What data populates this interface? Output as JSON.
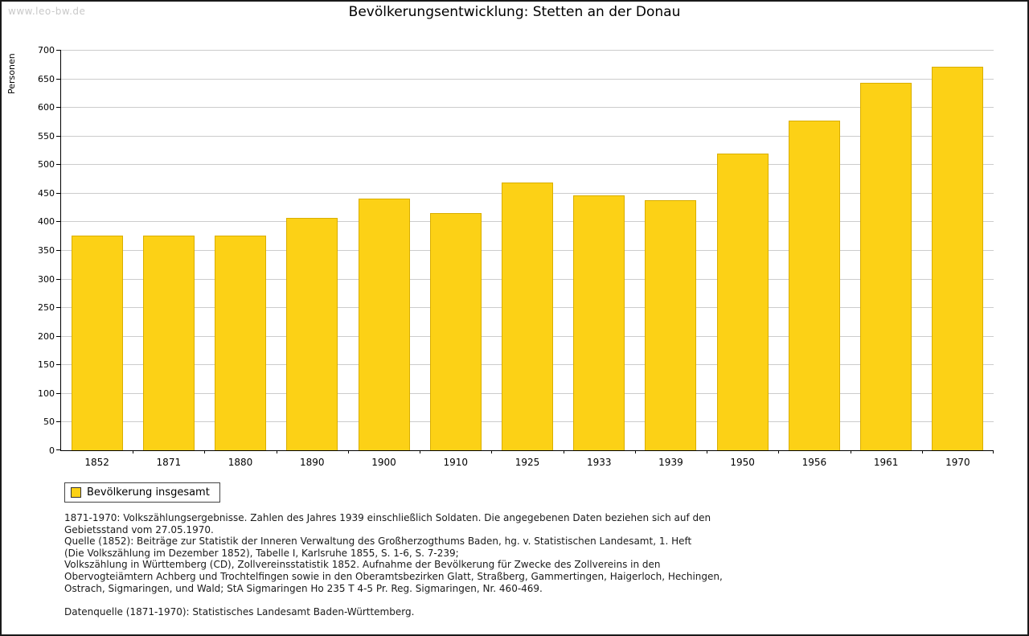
{
  "watermark": "www.leo-bw.de",
  "chart_data": {
    "type": "bar",
    "title": "Bevölkerungsentwicklung: Stetten an der Donau",
    "xlabel": "",
    "ylabel": "Personen",
    "categories": [
      "1852",
      "1871",
      "1880",
      "1890",
      "1900",
      "1910",
      "1925",
      "1933",
      "1939",
      "1950",
      "1956",
      "1961",
      "1970"
    ],
    "values": [
      375,
      376,
      376,
      406,
      440,
      415,
      468,
      445,
      437,
      519,
      576,
      642,
      671
    ],
    "ylim": [
      0,
      700
    ],
    "ytick_step": 50,
    "grid": true,
    "bar_color": "#FCD116",
    "bar_border_color": "#D9AE00",
    "axis_color": "#000000",
    "grid_color": "#cccccc",
    "legend": {
      "label": "Bevölkerung insgesamt",
      "position": "bottom-left"
    }
  },
  "footnotes": [
    "1871-1970: Volkszählungsergebnisse. Zahlen des Jahres 1939 einschließlich Soldaten. Die angegebenen Daten beziehen sich auf den",
    "Gebietsstand vom 27.05.1970.",
    "Quelle (1852): Beiträge zur Statistik der Inneren Verwaltung des Großherzogthums Baden, hg. v. Statistischen Landesamt, 1. Heft",
    "(Die Volkszählung im Dezember 1852), Tabelle I, Karlsruhe 1855, S. 1-6, S. 7-239;",
    "Volkszählung in Württemberg (CD), Zollvereinsstatistik 1852. Aufnahme der Bevölkerung für Zwecke des Zollvereins in den",
    "Obervogteiämtern Achberg und Trochtelfingen sowie in den Oberamtsbezirken Glatt, Straßberg, Gammertingen, Haigerloch, Hechingen,",
    "Ostrach, Sigmaringen, und Wald; StA Sigmaringen Ho 235 T 4-5 Pr. Reg. Sigmaringen, Nr. 460-469.",
    "",
    "Datenquelle (1871-1970): Statistisches Landesamt Baden-Württemberg."
  ]
}
